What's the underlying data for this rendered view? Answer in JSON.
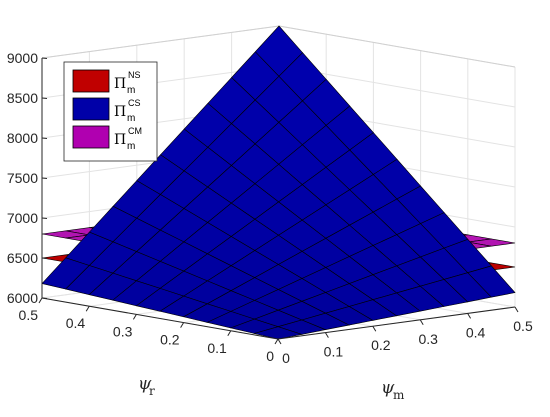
{
  "chart_data": {
    "type": "surface3d",
    "x_axis": {
      "label": "ψ",
      "label_subscript": "m",
      "range": [
        0,
        0.5
      ],
      "ticks": [
        "0",
        "0.1",
        "0.2",
        "0.3",
        "0.4",
        "0.5"
      ]
    },
    "y_axis": {
      "label": "ψ",
      "label_subscript": "r",
      "range": [
        0,
        0.5
      ],
      "ticks": [
        "0",
        "0.1",
        "0.2",
        "0.3",
        "0.4",
        "0.5"
      ]
    },
    "z_axis": {
      "range": [
        6000,
        9000
      ],
      "ticks": [
        "6000",
        "6500",
        "7000",
        "7500",
        "8000",
        "8500",
        "9000"
      ]
    },
    "grid": true,
    "legend_position": "top-left",
    "series": [
      {
        "name": "Π",
        "superscript": "NS",
        "subscript": "m",
        "color": "#c00000",
        "description": "plane",
        "corners": {
          "psi_m_0_psi_r_0": 6500,
          "psi_m_05_psi_r_0": 6500,
          "psi_m_05_psi_r_05": 6500,
          "psi_m_0_psi_r_05": 6500
        }
      },
      {
        "name": "Π",
        "superscript": "CS",
        "subscript": "m",
        "color": "#0000a8",
        "description": "curved surface",
        "corners": {
          "psi_m_0_psi_r_0": 6000,
          "psi_m_05_psi_r_0": 6180,
          "psi_m_05_psi_r_05": 9000,
          "psi_m_0_psi_r_05": 6180
        }
      },
      {
        "name": "Π",
        "superscript": "CM",
        "subscript": "m",
        "color": "#b000b0",
        "description": "plane",
        "corners": {
          "psi_m_0_psi_r_0": 6800,
          "psi_m_05_psi_r_0": 6800,
          "psi_m_05_psi_r_05": 6800,
          "psi_m_0_psi_r_05": 6800
        }
      }
    ]
  }
}
